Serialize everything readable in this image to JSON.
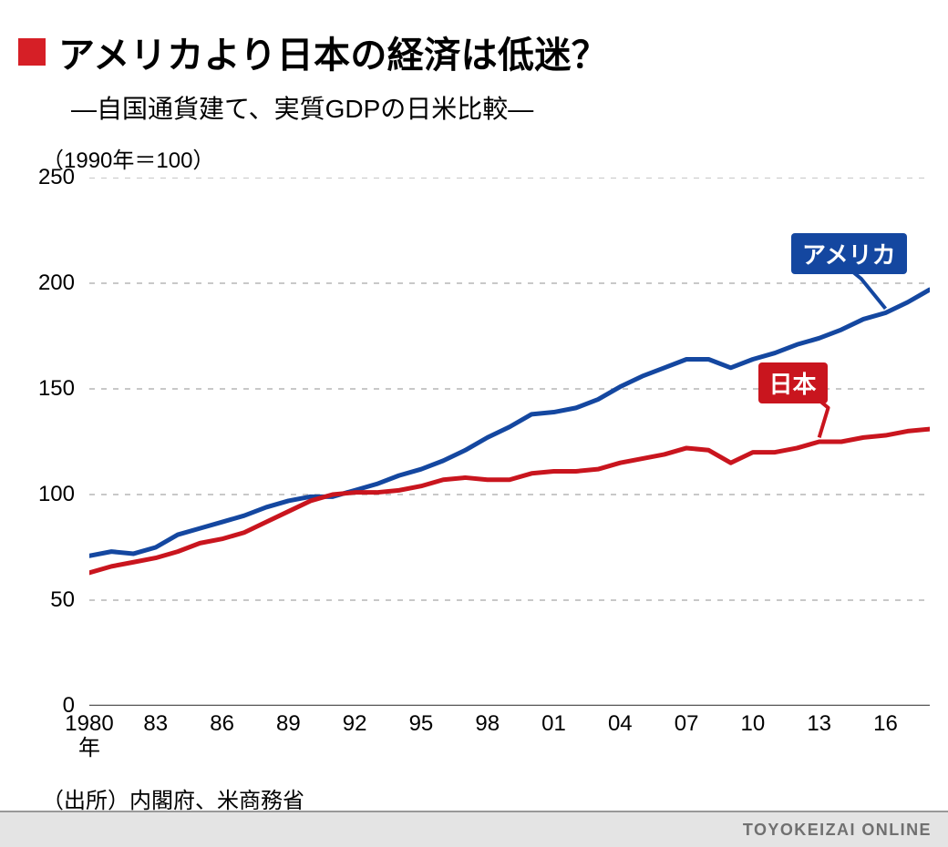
{
  "title": "アメリカより日本の経済は低迷？",
  "title_marker_color": "#d61f26",
  "subtitle": "―自国通貨建て、実質GDPの日米比較―",
  "y_annotation": "（1990年＝100）",
  "source": "（出所）内閣府、米商務省",
  "footer": "TOYOKEIZAI ONLINE",
  "chart": {
    "type": "line",
    "background_color": "#ffffff",
    "grid_color": "#b6b6b6",
    "grid_dash": "6,7",
    "axis_color": "#555555",
    "xlim": [
      1980,
      2018
    ],
    "ylim": [
      0,
      250
    ],
    "ytick_step": 50,
    "yticks": [
      0,
      50,
      100,
      150,
      200,
      250
    ],
    "xticks": [
      1980,
      1983,
      1986,
      1989,
      1992,
      1995,
      1998,
      2001,
      2004,
      2007,
      2010,
      2013,
      2016
    ],
    "xtick_labels": [
      "1980\n年",
      "83",
      "86",
      "89",
      "92",
      "95",
      "98",
      "01",
      "04",
      "07",
      "10",
      "13",
      "16"
    ],
    "line_width": 5,
    "series": [
      {
        "name": "アメリカ",
        "color": "#1447a0",
        "label_bg": "#1447a0",
        "label_pos": {
          "x": 2014,
          "y": 215
        },
        "callout_to": {
          "x": 2016,
          "y": 188
        },
        "x": [
          1980,
          1981,
          1982,
          1983,
          1984,
          1985,
          1986,
          1987,
          1988,
          1989,
          1990,
          1991,
          1992,
          1993,
          1994,
          1995,
          1996,
          1997,
          1998,
          1999,
          2000,
          2001,
          2002,
          2003,
          2004,
          2005,
          2006,
          2007,
          2008,
          2009,
          2010,
          2011,
          2012,
          2013,
          2014,
          2015,
          2016,
          2017,
          2018
        ],
        "y": [
          71,
          73,
          72,
          75,
          81,
          84,
          87,
          90,
          94,
          97,
          99,
          99,
          102,
          105,
          109,
          112,
          116,
          121,
          127,
          132,
          138,
          139,
          141,
          145,
          151,
          156,
          160,
          164,
          164,
          160,
          164,
          167,
          171,
          174,
          178,
          183,
          186,
          191,
          197
        ]
      },
      {
        "name": "日本",
        "color": "#c9151e",
        "label_bg": "#c9151e",
        "label_pos": {
          "x": 2012.5,
          "y": 154
        },
        "callout_to": {
          "x": 2013,
          "y": 127
        },
        "x": [
          1980,
          1981,
          1982,
          1983,
          1984,
          1985,
          1986,
          1987,
          1988,
          1989,
          1990,
          1991,
          1992,
          1993,
          1994,
          1995,
          1996,
          1997,
          1998,
          1999,
          2000,
          2001,
          2002,
          2003,
          2004,
          2005,
          2006,
          2007,
          2008,
          2009,
          2010,
          2011,
          2012,
          2013,
          2014,
          2015,
          2016,
          2017,
          2018
        ],
        "y": [
          63,
          66,
          68,
          70,
          73,
          77,
          79,
          82,
          87,
          92,
          97,
          100,
          101,
          101,
          102,
          104,
          107,
          108,
          107,
          107,
          110,
          111,
          111,
          112,
          115,
          117,
          119,
          122,
          121,
          115,
          120,
          120,
          122,
          125,
          125,
          127,
          128,
          130,
          131
        ]
      }
    ]
  },
  "typography": {
    "title_fontsize": 40,
    "subtitle_fontsize": 28,
    "axis_label_fontsize": 24,
    "series_label_fontsize": 26,
    "footer_fontsize": 18
  }
}
